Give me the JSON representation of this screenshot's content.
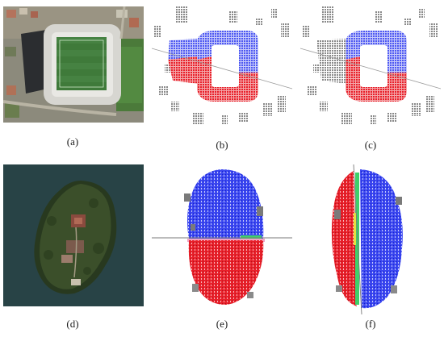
{
  "figure": {
    "panels": [
      {
        "id": "a",
        "caption": "(a)",
        "content": "aerial photo of stadium"
      },
      {
        "id": "b",
        "caption": "(b)",
        "content": "stadium point cloud split by line, red and blue halves"
      },
      {
        "id": "c",
        "caption": "(c)",
        "content": "stadium point cloud with alternative split"
      },
      {
        "id": "d",
        "caption": "(d)",
        "content": "aerial photo of small island"
      },
      {
        "id": "e",
        "caption": "(e)",
        "content": "island point cloud split horizontally"
      },
      {
        "id": "f",
        "caption": "(f)",
        "content": "island point cloud split vertically"
      }
    ]
  },
  "colors": {
    "split_red": "#e8202a",
    "split_blue": "#1f2cf0",
    "line_gray": "#9a9a9a",
    "building_gray": "#8a8a8a",
    "water": "#2c4a4e",
    "grass": "#3f7a3a"
  }
}
